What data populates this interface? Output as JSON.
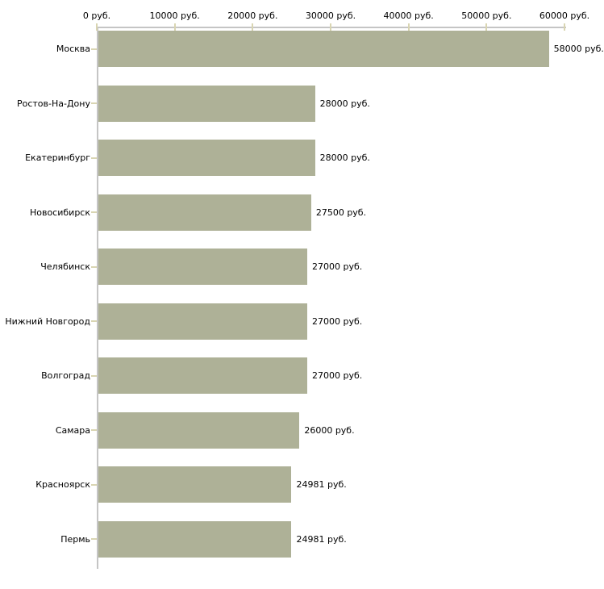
{
  "chart_data": {
    "type": "bar",
    "orientation": "horizontal",
    "title": "",
    "xlabel": "",
    "ylabel": "",
    "categories": [
      "Москва",
      "Ростов-На-Дону",
      "Екатеринбург",
      "Новосибирск",
      "Челябинск",
      "Нижний Новгород",
      "Волгоград",
      "Самара",
      "Красноярск",
      "Пермь"
    ],
    "values": [
      58000,
      28000,
      28000,
      27500,
      27000,
      27000,
      27000,
      26000,
      24981,
      24981
    ],
    "bar_labels": [
      "58000 руб.",
      "28000 руб.",
      "28000 руб.",
      "27500 руб.",
      "27000 руб.",
      "27000 руб.",
      "27000 руб.",
      "26000 руб.",
      "24981 руб.",
      "24981 руб."
    ],
    "x_tick_values": [
      0,
      10000,
      20000,
      30000,
      40000,
      50000,
      60000
    ],
    "x_tick_labels": [
      "0 руб.",
      "10000 руб.",
      "20000 руб.",
      "30000 руб.",
      "40000 руб.",
      "50000 руб.",
      "60000 руб."
    ],
    "xlim": [
      0,
      60000
    ],
    "value_suffix": " руб.",
    "grid": false,
    "legend": null,
    "colors": {
      "bar": "#aeb197",
      "axis_line": "#c5c5c5",
      "tick_mark": "#d9d5b2",
      "text": "#000000",
      "background": "#ffffff"
    }
  }
}
